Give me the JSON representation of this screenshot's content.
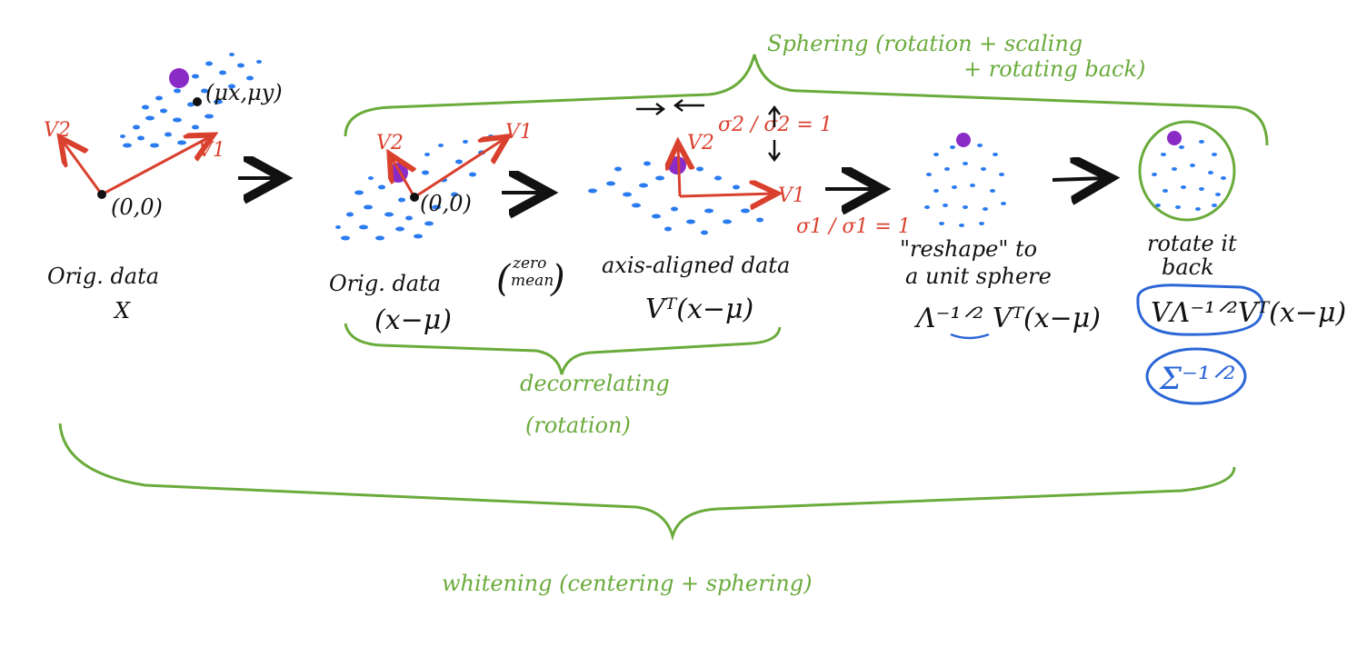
{
  "colors": {
    "points": "#2b7bf0",
    "highlight": "#8a2bc8",
    "vectors": "#d9402e",
    "braces": "#6aab3c",
    "ink": "#111111",
    "formula_circle": "#2b66d6"
  },
  "panel1": {
    "mean_label": "(μx,μy)",
    "origin_label": "(0,0)",
    "v1": "V1",
    "v2": "V2",
    "caption1": "Orig. data",
    "caption2": "X"
  },
  "panel2": {
    "origin_label": "(0,0)",
    "v1": "V1",
    "v2": "V2",
    "caption1": "Orig. data",
    "caption_note_top": "zero",
    "caption_note_bottom": "mean",
    "caption2": "(x−μ)"
  },
  "panel3": {
    "v1": "V1",
    "v2": "V2",
    "sigma2": "σ2 / σ2 = 1",
    "sigma1": "σ1 / σ1 = 1",
    "caption1": "axis-aligned data",
    "caption2": "Vᵀ(x−μ)"
  },
  "panel4": {
    "caption1": "\"reshape\" to",
    "caption2": "a unit sphere",
    "caption3": "Λ⁻¹ᐟ² Vᵀ(x−μ)"
  },
  "panel5": {
    "caption1": "rotate it",
    "caption2": "back",
    "formula": "VΛ⁻¹ᐟ²Vᵀ(x−μ)",
    "sigma_formula": "Σ⁻¹ᐟ²"
  },
  "braces": {
    "sphering_title": "Sphering (rotation + scaling",
    "sphering_title2": "+ rotating back)",
    "decorrelating": "decorrelating",
    "decorrelating2": "(rotation)",
    "whitening": "whitening (centering + sphering)"
  }
}
